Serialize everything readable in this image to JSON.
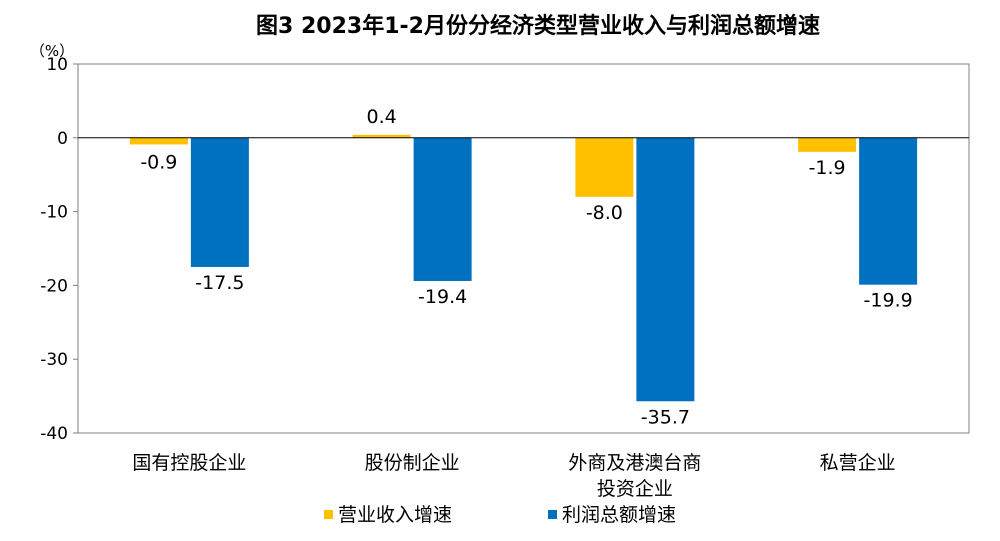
{
  "chart_data": {
    "type": "bar",
    "title": "图3 2023年1-2月份分经济类型营业收入与利润总额增速",
    "ylabel": "（%）",
    "xlabel": "",
    "categories": [
      [
        "国有控股企业"
      ],
      [
        "股份制企业"
      ],
      [
        "外商及港澳台商",
        "投资企业"
      ],
      [
        "私营企业"
      ]
    ],
    "series": [
      {
        "name": "营业收入增速",
        "color": "#FFC000",
        "values": [
          -0.9,
          0.4,
          -8.0,
          -1.9
        ],
        "labels": [
          "-0.9",
          "0.4",
          "-8.0",
          "-1.9"
        ]
      },
      {
        "name": "利润总额增速",
        "color": "#0070C0",
        "values": [
          -17.5,
          -19.4,
          -35.7,
          -19.9
        ],
        "labels": [
          "-17.5",
          "-19.4",
          "-35.7",
          "-19.9"
        ]
      }
    ],
    "ylim": [
      -40,
      10
    ],
    "yticks": [
      10,
      0,
      -10,
      -20,
      -30,
      -40
    ],
    "grid": false,
    "legend_position": "bottom-center"
  }
}
